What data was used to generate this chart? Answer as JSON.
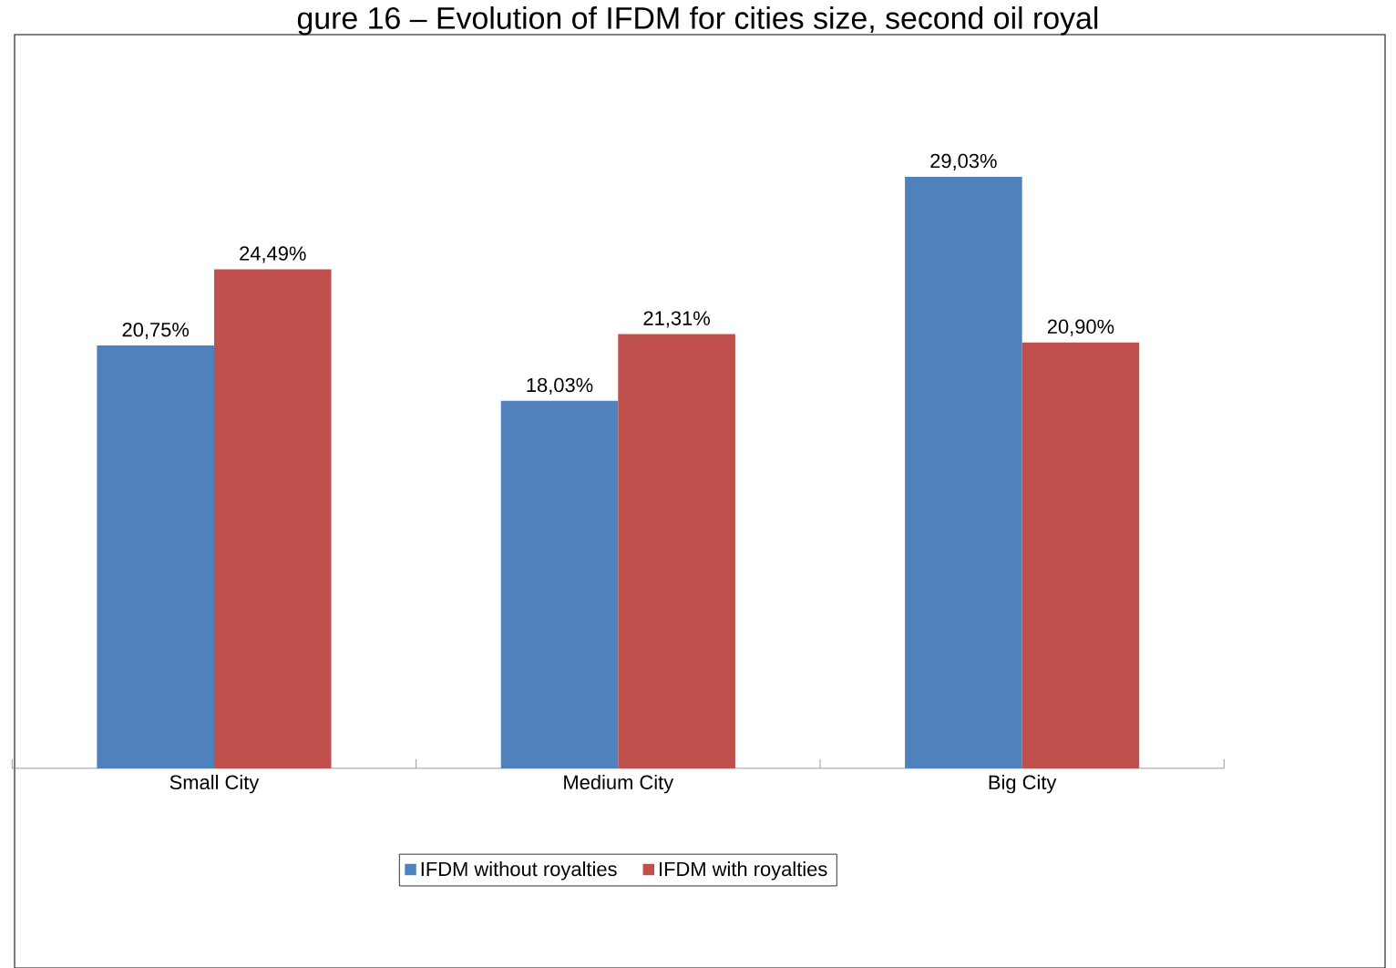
{
  "chart_data": {
    "type": "bar",
    "title": "gure 16 – Evolution of IFDM for cities size, second oil royal",
    "categories": [
      "Small City",
      "Medium City",
      "Big City"
    ],
    "legend": "bottom",
    "series": [
      {
        "name": "IFDM without royalties",
        "color": "#4f81bd",
        "values": [
          20.75,
          18.03,
          29.03
        ],
        "value_labels": [
          "20,75%",
          "18,03%",
          "29,03%"
        ]
      },
      {
        "name": "IFDM with royalties",
        "color": "#c0504d",
        "values": [
          24.49,
          21.31,
          20.9
        ],
        "value_labels": [
          "24,49%",
          "21,31%",
          "20,90%"
        ]
      }
    ]
  }
}
